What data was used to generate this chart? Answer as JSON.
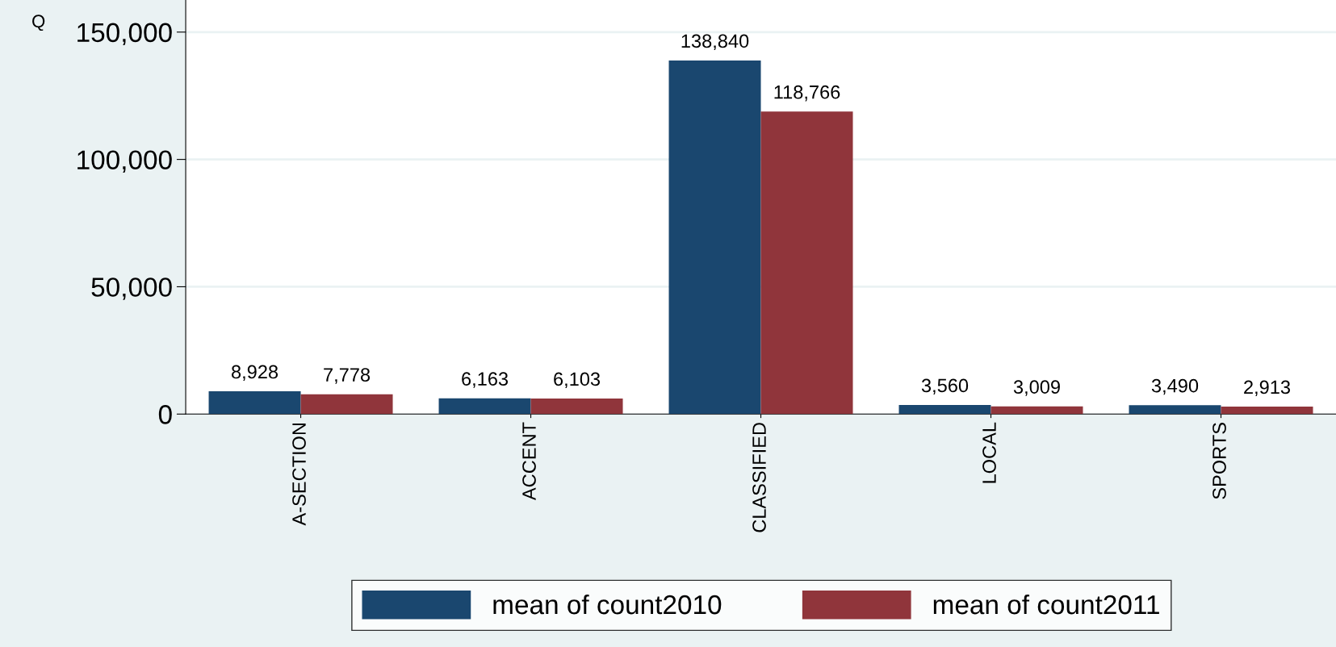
{
  "chart_data": {
    "type": "bar",
    "ylabel": "Q",
    "categories": [
      "A-SECTION",
      "ACCENT",
      "CLASSIFIED",
      "LOCAL",
      "SPORTS"
    ],
    "series": [
      {
        "name": "mean of count2010",
        "color": "#1a476f",
        "values": [
          8928,
          6163,
          138840,
          3560,
          3490
        ],
        "value_labels": [
          "8,928",
          "6,163",
          "138,840",
          "3,560",
          "3,490"
        ]
      },
      {
        "name": "mean of count2011",
        "color": "#90353b",
        "values": [
          7778,
          6103,
          118766,
          3009,
          2913
        ],
        "value_labels": [
          "7,778",
          "6,103",
          "118,766",
          "3,009",
          "2,913"
        ]
      }
    ],
    "ylim": [
      0,
      162600
    ],
    "yticks": [
      {
        "value": 0,
        "label": "0"
      },
      {
        "value": 50000,
        "label": "50,000"
      },
      {
        "value": 100000,
        "label": "100,000"
      },
      {
        "value": 150000,
        "label": "150,000"
      }
    ],
    "grid": "y",
    "legend": "bottom"
  }
}
